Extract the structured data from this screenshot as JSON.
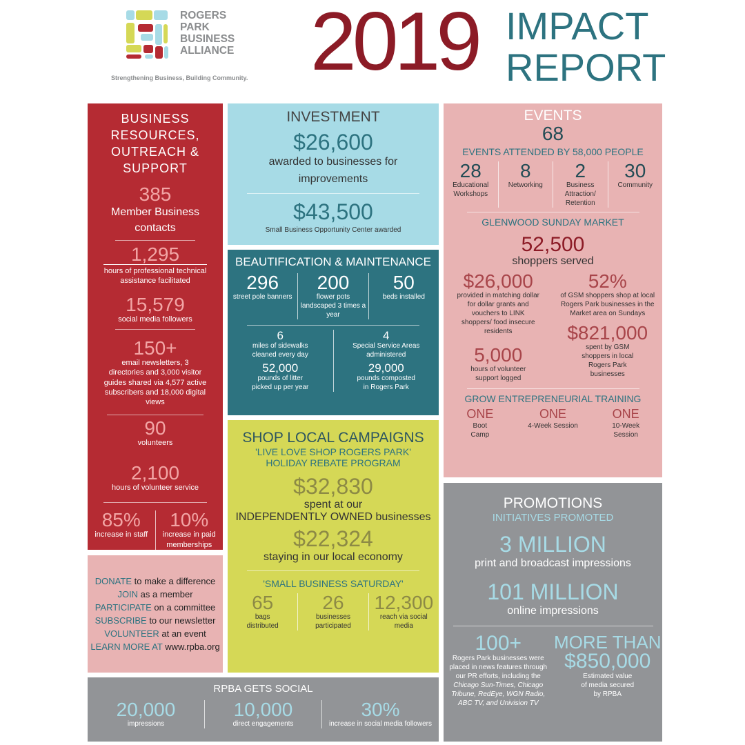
{
  "header": {
    "org_lines": [
      "ROGERS",
      "PARK",
      "BUSINESS",
      "ALLIANCE"
    ],
    "tagline": "Strengthening Business, Building Community.",
    "year": "2019",
    "title_lines": [
      "IMPACT",
      "REPORT"
    ]
  },
  "colors": {
    "red": "#b52b33",
    "teal": "#2d7380",
    "lightblue": "#a7dbe6",
    "pink": "#e8b3b3",
    "yellow": "#d5d856",
    "gray": "#929497",
    "darkred": "#8c1b26"
  },
  "business": {
    "title_lines": [
      "BUSINESS",
      "RESOURCES,",
      "OUTREACH &",
      "SUPPORT"
    ],
    "stats": [
      {
        "num": "385",
        "label": "Member Business contacts"
      },
      {
        "num": "1,295",
        "label": "hours of professional technical assistance facilitated"
      },
      {
        "num": "15,579",
        "label": "social media followers"
      },
      {
        "num": "150+",
        "label": "email newsletters, 3 directories and 3,000 visitor guides shared via 4,577 active subscribers and 18,000 digital views"
      },
      {
        "num": "90",
        "label": "volunteers"
      },
      {
        "num": "2,100",
        "label": "hours of volunteer service"
      }
    ],
    "pair": [
      {
        "num": "85%",
        "label": "increase in staff"
      },
      {
        "num": "10%",
        "label": "increase in paid memberships"
      }
    ]
  },
  "cta": [
    {
      "k": "DONATE",
      "t": " to make a difference"
    },
    {
      "k": "JOIN",
      "t": " as a member"
    },
    {
      "k": "PARTICIPATE",
      "t": " on a committee"
    },
    {
      "k": "SUBSCRIBE",
      "t": " to our newsletter"
    },
    {
      "k": "VOLUNTEER",
      "t": " at an event"
    },
    {
      "k": "LEARN MORE AT",
      "t": " www.rpba.org"
    }
  ],
  "investment": {
    "title": "INVESTMENT",
    "amount1": "$26,600",
    "label1": "awarded to businesses for improvements",
    "amount2": "$43,500",
    "label2": "Small Business Opportunity Center  awarded"
  },
  "beautification": {
    "title": "BEAUTIFICATION & MAINTENANCE",
    "top": [
      {
        "num": "296",
        "label": "street pole banners"
      },
      {
        "num": "200",
        "label": "flower pots landscaped 3 times a year"
      },
      {
        "num": "50",
        "label": "beds installed"
      }
    ],
    "left": [
      {
        "num": "6",
        "label": "miles of sidewalks cleaned every day"
      },
      {
        "num": "52,000",
        "label": "pounds of litter picked up per year"
      }
    ],
    "right": [
      {
        "num": "4",
        "label": "Special Service Areas administered"
      },
      {
        "num": "29,000",
        "label": "pounds composted in Rogers Park"
      }
    ]
  },
  "shop": {
    "title": "SHOP LOCAL CAMPAIGNS",
    "subtitle1": "'LIVE LOVE SHOP ROGERS PARK'",
    "subtitle2": "HOLIDAY REBATE PROGRAM",
    "amount1": "$32,830",
    "label1a": "spent at our",
    "label1b": "INDEPENDENTLY OWNED businesses",
    "amount2": "$22,324",
    "label2": "staying in our local economy",
    "sbs_title": "'SMALL BUSINESS SATURDAY'",
    "sbs": [
      {
        "num": "65",
        "label": "bags distributed"
      },
      {
        "num": "26",
        "label": "businesses participated"
      },
      {
        "num": "12,300",
        "label": "reach via social media"
      }
    ]
  },
  "events": {
    "title": "EVENTS",
    "total": "68",
    "subtitle": "EVENTS ATTENDED BY 58,000 PEOPLE",
    "types": [
      {
        "num": "28",
        "label": "Educational Workshops"
      },
      {
        "num": "8",
        "label": "Networking"
      },
      {
        "num": "2",
        "label": "Business Attraction/ Retention"
      },
      {
        "num": "30",
        "label": "Community"
      }
    ],
    "market_title": "GLENWOOD SUNDAY MARKET",
    "shoppers": "52,500",
    "shoppers_label": "shoppers served",
    "m1": {
      "num": "$26,000",
      "label": "provided in matching dollar for dollar grants and vouchers to LINK shoppers/ food insecure residents"
    },
    "m2": {
      "num": "52%",
      "label": "of GSM shoppers shop at local Rogers Park businesses in the Market area on Sundays"
    },
    "m3": {
      "num": "5,000",
      "label": "hours of volunteer support logged"
    },
    "m4": {
      "num": "$821,000",
      "label": "spent by GSM shoppers in local Rogers Park businesses"
    },
    "grow_title": "GROW ENTREPRENEURIAL TRAINING",
    "grow": [
      {
        "num": "ONE",
        "label": "Boot Camp"
      },
      {
        "num": "ONE",
        "label": "4-Week Session"
      },
      {
        "num": "ONE",
        "label": "10-Week Session"
      }
    ]
  },
  "promotions": {
    "title": "PROMOTIONS",
    "subtitle": "INITIATIVES PROMOTED",
    "a1": "3 MILLION",
    "l1": "print and broadcast impressions",
    "a2": "101 MILLION",
    "l2": "online impressions",
    "b1": "100+",
    "b1_label": "Rogers Park businesses were placed in news features through our PR efforts, including the",
    "b1_media": "Chicago Sun-Times, Chicago Tribune, RedEye, WGN Radio, ABC TV, and Univision TV",
    "b2_pre": "MORE THAN",
    "b2": "$850,000",
    "b2_label": "Estimated value of media secured by RPBA"
  },
  "social": {
    "title": "RPBA GETS SOCIAL",
    "stats": [
      {
        "num": "20,000",
        "label": "impressions"
      },
      {
        "num": "10,000",
        "label": "direct engagements"
      },
      {
        "num": "30%",
        "label": "increase in social media followers"
      }
    ]
  }
}
